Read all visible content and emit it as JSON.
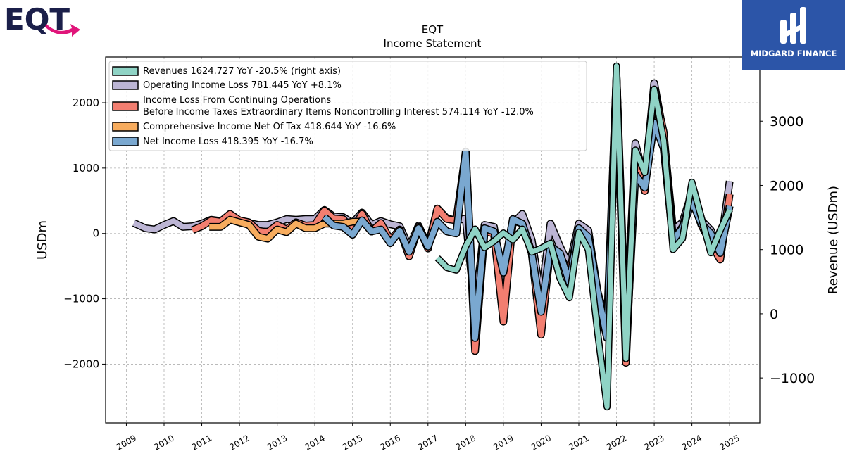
{
  "brand": {
    "left_logo_text": "EQT",
    "right_logo_text": "MIDGARD FINANCE",
    "right_logo_color": "#2c55a8"
  },
  "chart_data": {
    "type": "line",
    "title": "EQT",
    "subtitle": "Income Statement",
    "ylabel": "USDm",
    "ylabel_right": "Revenue (USDm)",
    "ylim": [
      -2900,
      2700
    ],
    "ylim_right": [
      -1700,
      4000
    ],
    "yticks": [
      -2000,
      -1000,
      0,
      1000,
      2000
    ],
    "yticks_right": [
      -1000,
      0,
      1000,
      2000,
      3000
    ],
    "xlim": [
      2008.45,
      2025.8
    ],
    "xticks": [
      "2009",
      "2010",
      "2011",
      "2012",
      "2013",
      "2014",
      "2015",
      "2016",
      "2017",
      "2018",
      "2019",
      "2020",
      "2021",
      "2022",
      "2023",
      "2024",
      "2025"
    ],
    "grid": true,
    "legend_position": "upper-left",
    "series": [
      {
        "name": "Operating Income Loss",
        "legend": "Operating Income Loss  781.445 YoY +8.1%",
        "color": "#bcb5d4",
        "axis": "left",
        "points": [
          [
            2009.2,
            160
          ],
          [
            2009.5,
            80
          ],
          [
            2009.75,
            60
          ],
          [
            2010.0,
            130
          ],
          [
            2010.25,
            190
          ],
          [
            2010.5,
            100
          ],
          [
            2010.75,
            110
          ],
          [
            2011.0,
            150
          ],
          [
            2011.25,
            210
          ],
          [
            2011.5,
            190
          ],
          [
            2011.75,
            270
          ],
          [
            2012.0,
            180
          ],
          [
            2012.25,
            160
          ],
          [
            2012.5,
            130
          ],
          [
            2012.75,
            130
          ],
          [
            2013.0,
            170
          ],
          [
            2013.25,
            220
          ],
          [
            2013.5,
            210
          ],
          [
            2013.75,
            220
          ],
          [
            2014.0,
            220
          ],
          [
            2014.25,
            360
          ],
          [
            2014.5,
            260
          ],
          [
            2014.75,
            250
          ],
          [
            2015.0,
            160
          ],
          [
            2015.25,
            320
          ],
          [
            2015.5,
            130
          ],
          [
            2015.75,
            190
          ],
          [
            2016.0,
            140
          ],
          [
            2016.25,
            110
          ],
          [
            2016.5,
            -220
          ],
          [
            2016.75,
            120
          ],
          [
            2017.0,
            -200
          ],
          [
            2017.25,
            380
          ],
          [
            2017.5,
            230
          ],
          [
            2017.75,
            200
          ],
          [
            2018.0,
            230
          ],
          [
            2018.25,
            -1200
          ],
          [
            2018.5,
            130
          ],
          [
            2018.75,
            100
          ],
          [
            2019.0,
            -800
          ],
          [
            2019.25,
            150
          ],
          [
            2019.5,
            300
          ],
          [
            2019.75,
            -100
          ],
          [
            2020.0,
            -1000
          ],
          [
            2020.25,
            150
          ],
          [
            2020.5,
            -200
          ],
          [
            2020.75,
            -500
          ],
          [
            2021.0,
            150
          ],
          [
            2021.25,
            50
          ],
          [
            2021.5,
            -900
          ],
          [
            2021.75,
            -1400
          ],
          [
            2022.0,
            2420
          ],
          [
            2022.25,
            -1600
          ],
          [
            2022.5,
            1380
          ],
          [
            2022.75,
            800
          ],
          [
            2023.0,
            2300
          ],
          [
            2023.25,
            1500
          ],
          [
            2023.5,
            50
          ],
          [
            2023.75,
            170
          ],
          [
            2024.0,
            620
          ],
          [
            2024.25,
            200
          ],
          [
            2024.5,
            50
          ],
          [
            2024.75,
            -250
          ],
          [
            2025.0,
            800
          ]
        ]
      },
      {
        "name": "Income Loss From Continuing Operations Before Income Taxes Extraordinary Items Noncontrolling Interest",
        "legend_line1": "Income Loss From Continuing Operations",
        "legend_line2": "Before Income Taxes Extraordinary Items Noncontrolling Interest  574.114 YoY -12.0%",
        "color": "#f27e70",
        "axis": "left",
        "points": [
          [
            2010.75,
            50
          ],
          [
            2011.0,
            110
          ],
          [
            2011.25,
            200
          ],
          [
            2011.5,
            180
          ],
          [
            2011.75,
            300
          ],
          [
            2012.0,
            200
          ],
          [
            2012.25,
            170
          ],
          [
            2012.5,
            40
          ],
          [
            2012.75,
            20
          ],
          [
            2013.0,
            130
          ],
          [
            2013.25,
            60
          ],
          [
            2013.5,
            170
          ],
          [
            2013.75,
            120
          ],
          [
            2014.0,
            130
          ],
          [
            2014.25,
            350
          ],
          [
            2014.5,
            230
          ],
          [
            2014.75,
            220
          ],
          [
            2015.0,
            50
          ],
          [
            2015.25,
            300
          ],
          [
            2015.5,
            30
          ],
          [
            2015.75,
            160
          ],
          [
            2016.0,
            -100
          ],
          [
            2016.25,
            60
          ],
          [
            2016.5,
            -350
          ],
          [
            2016.75,
            100
          ],
          [
            2017.0,
            -230
          ],
          [
            2017.25,
            380
          ],
          [
            2017.5,
            220
          ],
          [
            2017.75,
            200
          ],
          [
            2018.0,
            1250
          ],
          [
            2018.25,
            -1800
          ],
          [
            2018.5,
            30
          ],
          [
            2018.75,
            0
          ],
          [
            2019.0,
            -1350
          ],
          [
            2019.25,
            200
          ],
          [
            2019.5,
            150
          ],
          [
            2019.75,
            -300
          ],
          [
            2020.0,
            -1550
          ],
          [
            2020.25,
            -200
          ],
          [
            2020.5,
            -350
          ],
          [
            2020.75,
            -600
          ],
          [
            2021.0,
            50
          ],
          [
            2021.25,
            -100
          ],
          [
            2021.5,
            -1000
          ],
          [
            2021.75,
            -1600
          ],
          [
            2022.0,
            2380
          ],
          [
            2022.25,
            -1980
          ],
          [
            2022.5,
            1200
          ],
          [
            2022.75,
            650
          ],
          [
            2023.0,
            2200
          ],
          [
            2023.25,
            1550
          ],
          [
            2023.5,
            -100
          ],
          [
            2023.75,
            100
          ],
          [
            2024.0,
            550
          ],
          [
            2024.25,
            130
          ],
          [
            2024.5,
            -150
          ],
          [
            2024.75,
            -400
          ],
          [
            2025.0,
            600
          ]
        ]
      },
      {
        "name": "Comprehensive Income Net Of Tax",
        "legend": "Comprehensive Income Net Of Tax  418.644 YoY -16.6%",
        "color": "#f7ac5e",
        "axis": "left",
        "points": [
          [
            2011.2,
            100
          ],
          [
            2011.5,
            100
          ],
          [
            2011.75,
            210
          ],
          [
            2012.0,
            170
          ],
          [
            2012.25,
            130
          ],
          [
            2012.5,
            -50
          ],
          [
            2012.75,
            -80
          ],
          [
            2013.0,
            60
          ],
          [
            2013.25,
            20
          ],
          [
            2013.5,
            150
          ],
          [
            2013.75,
            80
          ],
          [
            2014.0,
            80
          ],
          [
            2014.25,
            150
          ],
          [
            2014.5,
            150
          ],
          [
            2014.75,
            150
          ],
          [
            2015.0,
            180
          ],
          [
            2015.25,
            180
          ]
        ]
      },
      {
        "name": "Net Income Loss",
        "legend": "Net Income Loss  418.395 YoY -16.7%",
        "color": "#7aa8d0",
        "axis": "left",
        "points": [
          [
            2014.25,
            250
          ],
          [
            2014.5,
            120
          ],
          [
            2014.75,
            100
          ],
          [
            2015.0,
            -20
          ],
          [
            2015.25,
            200
          ],
          [
            2015.5,
            30
          ],
          [
            2015.75,
            60
          ],
          [
            2016.0,
            -150
          ],
          [
            2016.25,
            40
          ],
          [
            2016.5,
            -280
          ],
          [
            2016.75,
            80
          ],
          [
            2017.0,
            -200
          ],
          [
            2017.25,
            180
          ],
          [
            2017.5,
            30
          ],
          [
            2017.75,
            0
          ],
          [
            2018.0,
            1250
          ],
          [
            2018.25,
            -1600
          ],
          [
            2018.5,
            80
          ],
          [
            2018.75,
            30
          ],
          [
            2019.0,
            -600
          ],
          [
            2019.25,
            220
          ],
          [
            2019.5,
            150
          ],
          [
            2019.75,
            -300
          ],
          [
            2020.0,
            -1200
          ],
          [
            2020.25,
            -200
          ],
          [
            2020.5,
            -300
          ],
          [
            2020.75,
            -750
          ],
          [
            2021.0,
            80
          ],
          [
            2021.25,
            -50
          ],
          [
            2021.5,
            -900
          ],
          [
            2021.75,
            -1600
          ],
          [
            2022.0,
            2400
          ],
          [
            2022.25,
            -1800
          ],
          [
            2022.5,
            900
          ],
          [
            2022.75,
            700
          ],
          [
            2023.0,
            1700
          ],
          [
            2023.25,
            1300
          ],
          [
            2023.5,
            -100
          ],
          [
            2023.75,
            80
          ],
          [
            2024.0,
            500
          ],
          [
            2024.25,
            150
          ],
          [
            2024.5,
            0
          ],
          [
            2024.75,
            -300
          ],
          [
            2025.0,
            420
          ]
        ]
      },
      {
        "name": "Revenues",
        "legend": "Revenues  1624.727 YoY -20.5% (right axis)",
        "color": "#8fd3c5",
        "axis": "right",
        "points": [
          [
            2017.25,
            870
          ],
          [
            2017.5,
            720
          ],
          [
            2017.75,
            680
          ],
          [
            2018.0,
            1050
          ],
          [
            2018.25,
            1320
          ],
          [
            2018.5,
            1030
          ],
          [
            2018.75,
            1130
          ],
          [
            2019.0,
            1260
          ],
          [
            2019.25,
            1150
          ],
          [
            2019.5,
            1320
          ],
          [
            2019.75,
            960
          ],
          [
            2020.0,
            1020
          ],
          [
            2020.25,
            1100
          ],
          [
            2020.5,
            550
          ],
          [
            2020.75,
            250
          ],
          [
            2021.0,
            1270
          ],
          [
            2021.25,
            1000
          ],
          [
            2021.5,
            -300
          ],
          [
            2021.75,
            -1450
          ],
          [
            2022.0,
            3860
          ],
          [
            2022.25,
            -700
          ],
          [
            2022.5,
            2550
          ],
          [
            2022.75,
            2200
          ],
          [
            2023.0,
            3500
          ],
          [
            2023.25,
            2700
          ],
          [
            2023.5,
            1000
          ],
          [
            2023.75,
            1170
          ],
          [
            2024.0,
            2050
          ],
          [
            2024.25,
            1500
          ],
          [
            2024.5,
            950
          ],
          [
            2024.75,
            1300
          ],
          [
            2025.0,
            1620
          ]
        ]
      }
    ]
  }
}
